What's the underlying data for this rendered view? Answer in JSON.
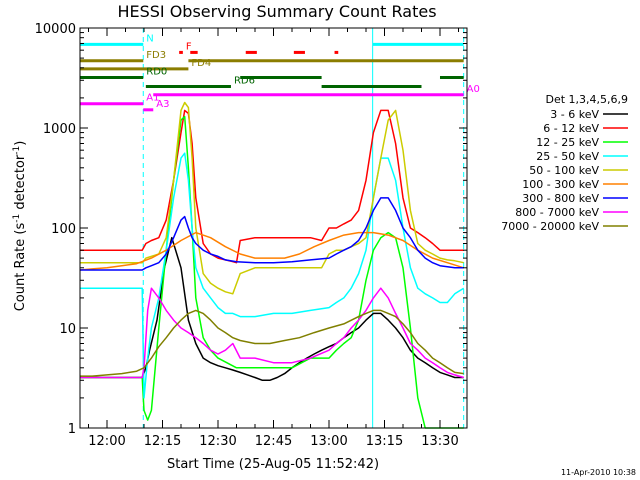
{
  "footer_date": "11-Apr-2010 10:38",
  "chart_data": {
    "type": "line",
    "title": "HESSI Observing Summary Count Rates",
    "xlabel": "Start Time (25-Aug-05 11:52:42)",
    "ylabel_parts": [
      "Count Rate (s",
      "-1",
      " detector",
      "-1",
      ")"
    ],
    "xlim": [
      -7.3,
      97.3
    ],
    "ylim": [
      1,
      10000
    ],
    "y_scale": "log",
    "x_ticks": [
      {
        "minute": 0,
        "label": "12:00"
      },
      {
        "minute": 15,
        "label": "12:15"
      },
      {
        "minute": 30,
        "label": "12:30"
      },
      {
        "minute": 45,
        "label": "12:45"
      },
      {
        "minute": 60,
        "label": "13:00"
      },
      {
        "minute": 75,
        "label": "13:15"
      },
      {
        "minute": 90,
        "label": "13:30"
      }
    ],
    "y_ticks": [
      {
        "value": 1,
        "label": "1"
      },
      {
        "value": 10,
        "label": "10"
      },
      {
        "value": 100,
        "label": "100"
      },
      {
        "value": 1000,
        "label": "1000"
      },
      {
        "value": 10000,
        "label": "10000"
      }
    ],
    "legend_title": "Det 1,3,4,5,6,9",
    "legend_position": "right",
    "vertical_lines": [
      {
        "x": 9.8,
        "style": "dashed",
        "color": "#00ffff"
      },
      {
        "x": 71.8,
        "style": "solid",
        "color": "#00ffff"
      },
      {
        "x": 96.4,
        "style": "dashed",
        "color": "#00ffff"
      }
    ],
    "flag_bars": [
      {
        "label": "N",
        "color": "#00ffff",
        "y": 6850,
        "segments": [
          [
            -7.3,
            9.8
          ],
          [
            71.8,
            96.4
          ]
        ]
      },
      {
        "label": "F",
        "color": "#ff0000",
        "y": 5700,
        "segments": [
          [
            19.5,
            20.5
          ],
          [
            22.5,
            24.5
          ],
          [
            37.5,
            40.5
          ],
          [
            50.5,
            53.5
          ],
          [
            61.5,
            62.5
          ]
        ]
      },
      {
        "label": "FD3",
        "color": "#8b7d00",
        "y": 4700,
        "segments": [
          [
            -7.3,
            9.8
          ],
          [
            22.0,
            96.4
          ]
        ]
      },
      {
        "label": "FD4",
        "color": "#8b7d00",
        "y": 3900,
        "segments": [
          [
            -7.3,
            22.0
          ]
        ]
      },
      {
        "label": "RD0",
        "color": "#006400",
        "y": 3200,
        "segments": [
          [
            -7.3,
            9.8
          ],
          [
            36.0,
            58.0
          ],
          [
            90.0,
            96.4
          ]
        ]
      },
      {
        "label": "RD6",
        "color": "#006400",
        "y": 2600,
        "segments": [
          [
            10.5,
            33.5
          ],
          [
            58.0,
            85.0
          ]
        ]
      },
      {
        "label": "A0",
        "color": "#ff00ff",
        "y": 2150,
        "segments": [
          [
            12.5,
            96.4
          ]
        ]
      },
      {
        "label": "A1",
        "color": "#ff00ff",
        "y": 1750,
        "segments": [
          [
            -7.3,
            9.8
          ]
        ]
      },
      {
        "label": "A3",
        "color": "#ff00ff",
        "y": 1520,
        "segments": [
          [
            9.8,
            12.5
          ]
        ]
      }
    ],
    "series": [
      {
        "name": "3 - 6 keV",
        "color": "#000000",
        "x": [
          -7.3,
          9.5,
          10.5,
          11.5,
          13.5,
          15.5,
          17.5,
          20,
          22,
          24,
          26,
          28,
          30,
          32,
          34,
          36,
          38,
          40,
          42,
          44,
          46,
          48,
          50,
          52,
          54,
          56,
          58,
          60,
          62,
          64,
          66,
          68,
          70,
          72,
          74,
          76,
          78,
          80,
          82,
          84,
          86,
          88,
          90,
          92,
          94,
          96.4
        ],
        "y": [
          3.2,
          3.2,
          4,
          6,
          12,
          40,
          80,
          40,
          12,
          7,
          5,
          4.5,
          4.2,
          4,
          3.8,
          3.6,
          3.4,
          3.2,
          3.0,
          3.0,
          3.2,
          3.5,
          4,
          4.5,
          5,
          5.5,
          6,
          6.5,
          7,
          8,
          9,
          10,
          12,
          14,
          14,
          12,
          10,
          8,
          6,
          5,
          4.5,
          4.0,
          3.6,
          3.4,
          3.2,
          3.2
        ]
      },
      {
        "name": "6 - 12 keV",
        "color": "#ff0000",
        "x": [
          -7.3,
          9.5,
          10.5,
          12,
          14,
          16,
          18,
          20,
          21,
          22,
          23,
          24,
          26,
          28,
          30,
          32,
          34,
          35,
          36,
          40,
          45,
          50,
          55,
          58,
          60,
          62,
          64,
          66,
          68,
          70,
          72,
          74,
          76,
          78,
          80,
          82,
          84,
          86,
          88,
          90,
          91,
          92,
          94,
          96.4
        ],
        "y": [
          60,
          60,
          70,
          75,
          80,
          120,
          300,
          900,
          1500,
          1400,
          700,
          200,
          70,
          55,
          50,
          48,
          46,
          45,
          75,
          80,
          80,
          80,
          80,
          75,
          100,
          100,
          110,
          120,
          150,
          300,
          900,
          1500,
          1500,
          700,
          200,
          100,
          90,
          80,
          70,
          60,
          60,
          60,
          60,
          60
        ]
      },
      {
        "name": "12 - 25 keV",
        "color": "#00ff00",
        "x": [
          -7.3,
          9.5,
          10,
          11,
          12,
          14,
          16,
          18,
          20,
          21,
          22,
          23,
          24,
          26,
          28,
          30,
          35,
          40,
          45,
          50,
          55,
          60,
          62,
          64,
          66,
          68,
          70,
          72,
          74,
          76,
          78,
          80,
          82,
          84,
          86,
          88,
          90,
          92,
          94,
          96.4
        ],
        "y": [
          3.2,
          3.2,
          1.5,
          1.2,
          1.5,
          10,
          60,
          300,
          1200,
          1300,
          400,
          100,
          20,
          8,
          6,
          5,
          4,
          4,
          4,
          4,
          5,
          5,
          6,
          7,
          8,
          12,
          30,
          60,
          80,
          90,
          80,
          40,
          10,
          2,
          1,
          1,
          1,
          1,
          1,
          1
        ]
      },
      {
        "name": "25 - 50 keV",
        "color": "#00ffff",
        "x": [
          -7.3,
          9.5,
          10,
          11,
          12,
          14,
          16,
          18,
          20,
          21,
          22,
          23,
          24,
          26,
          28,
          30,
          32,
          34,
          36,
          38,
          40,
          45,
          50,
          55,
          60,
          62,
          64,
          66,
          68,
          70,
          72,
          74,
          76,
          78,
          80,
          82,
          84,
          86,
          88,
          90,
          92,
          94,
          96.4
        ],
        "y": [
          25,
          25,
          2,
          5,
          10,
          20,
          60,
          200,
          500,
          560,
          300,
          100,
          40,
          25,
          20,
          16,
          14,
          14,
          13,
          13,
          13,
          14,
          14,
          15,
          16,
          18,
          20,
          25,
          35,
          60,
          200,
          500,
          500,
          300,
          100,
          40,
          25,
          22,
          20,
          18,
          18,
          22,
          25
        ]
      },
      {
        "name": "50 - 100 keV",
        "color": "#cccc00",
        "x": [
          -7.3,
          9.5,
          10.5,
          12,
          14,
          16,
          18,
          20,
          21,
          22,
          23,
          24,
          26,
          28,
          30,
          32,
          34,
          36,
          40,
          45,
          50,
          55,
          58,
          60,
          62,
          64,
          66,
          68,
          70,
          72,
          74,
          76,
          78,
          80,
          82,
          84,
          86,
          88,
          90,
          92,
          94,
          96.4
        ],
        "y": [
          45,
          45,
          50,
          52,
          55,
          80,
          300,
          1500,
          1800,
          1600,
          500,
          100,
          35,
          28,
          25,
          23,
          22,
          35,
          40,
          40,
          40,
          40,
          40,
          55,
          60,
          60,
          65,
          70,
          80,
          200,
          500,
          1200,
          1500,
          600,
          150,
          70,
          60,
          55,
          50,
          48,
          47,
          45
        ]
      },
      {
        "name": "100 - 300 keV",
        "color": "#ff8000",
        "x": [
          -7.3,
          -4,
          0,
          4,
          8,
          12,
          16,
          20,
          24,
          28,
          32,
          36,
          40,
          44,
          48,
          52,
          56,
          60,
          64,
          68,
          72,
          76,
          80,
          84,
          88,
          92,
          96.4
        ],
        "y": [
          38,
          39,
          40,
          42,
          44,
          50,
          60,
          75,
          90,
          80,
          65,
          55,
          50,
          50,
          50,
          55,
          65,
          75,
          85,
          90,
          90,
          85,
          75,
          60,
          50,
          45,
          40
        ]
      },
      {
        "name": "300 - 800 keV",
        "color": "#0000ff",
        "x": [
          -7.3,
          9.5,
          10.5,
          12,
          14,
          16,
          18,
          20,
          21,
          22,
          23,
          24,
          26,
          28,
          30,
          32,
          35,
          40,
          45,
          50,
          55,
          60,
          62,
          64,
          66,
          68,
          70,
          72,
          74,
          76,
          78,
          80,
          82,
          84,
          86,
          88,
          90,
          92,
          94,
          96.4
        ],
        "y": [
          38,
          38,
          40,
          42,
          45,
          55,
          80,
          120,
          130,
          100,
          80,
          70,
          60,
          55,
          52,
          48,
          46,
          45,
          45,
          46,
          48,
          50,
          55,
          60,
          65,
          75,
          100,
          150,
          200,
          200,
          150,
          100,
          80,
          60,
          50,
          45,
          42,
          41,
          40,
          40
        ]
      },
      {
        "name": "800 - 7000 keV",
        "color": "#ff00ff",
        "x": [
          -7.3,
          9.5,
          10,
          11,
          12,
          14,
          16,
          18,
          20,
          22,
          24,
          26,
          28,
          30,
          32,
          34,
          36,
          38,
          40,
          45,
          50,
          55,
          60,
          62,
          64,
          66,
          68,
          70,
          72,
          74,
          76,
          78,
          80,
          82,
          84,
          86,
          88,
          90,
          92,
          94,
          96.4
        ],
        "y": [
          3.2,
          3.2,
          4,
          15,
          25,
          20,
          15,
          12,
          10,
          9,
          8,
          7,
          6,
          5.5,
          6,
          7,
          5,
          5,
          5,
          4.5,
          4.5,
          5,
          6,
          7,
          8,
          10,
          12,
          15,
          20,
          25,
          20,
          14,
          10,
          7,
          6,
          5,
          4.5,
          4,
          3.6,
          3.4,
          3.2
        ]
      },
      {
        "name": "7000 - 20000 keV",
        "color": "#808000",
        "x": [
          -7.3,
          -4,
          0,
          4,
          8,
          10,
          12,
          14,
          16,
          18,
          20,
          22,
          24,
          26,
          28,
          30,
          32,
          34,
          36,
          40,
          44,
          48,
          52,
          56,
          60,
          64,
          68,
          70,
          72,
          74,
          76,
          78,
          80,
          82,
          84,
          86,
          88,
          90,
          92,
          94,
          96.4
        ],
        "y": [
          3.3,
          3.3,
          3.4,
          3.5,
          3.7,
          4,
          5,
          6.5,
          8,
          10,
          12,
          14,
          15,
          14,
          12,
          10,
          9,
          8,
          7.5,
          7,
          7,
          7.5,
          8,
          9,
          10,
          11,
          13,
          14,
          15,
          15,
          14,
          13,
          11,
          9,
          7,
          6,
          5,
          4.5,
          4,
          3.6,
          3.5
        ]
      }
    ]
  }
}
